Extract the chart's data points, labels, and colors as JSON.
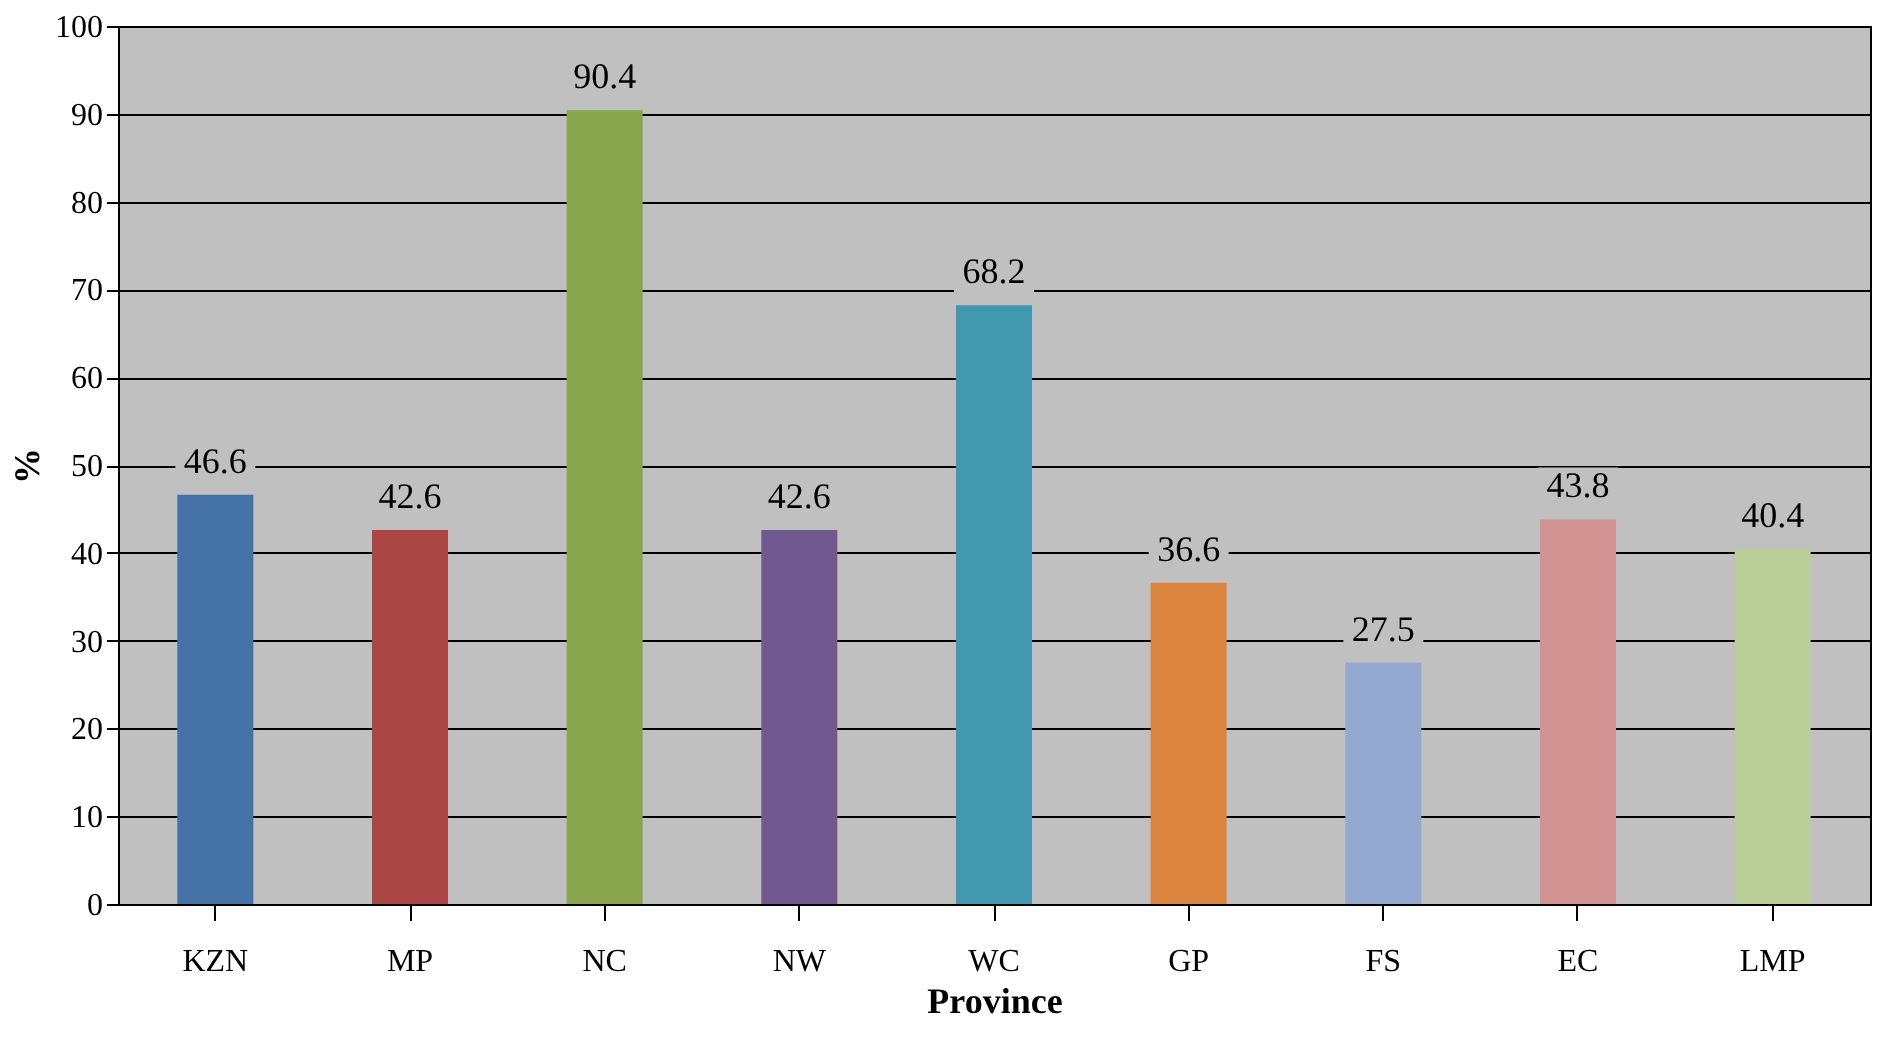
{
  "chart_data": {
    "type": "bar",
    "xlabel": "Province",
    "ylabel": "%",
    "categories": [
      "KZN",
      "MP",
      "NC",
      "NW",
      "WC",
      "GP",
      "FS",
      "EC",
      "LMP"
    ],
    "values": [
      46.6,
      42.6,
      90.4,
      42.6,
      68.2,
      36.6,
      27.5,
      43.8,
      40.4
    ],
    "colors": [
      "#4572a7",
      "#aa4643",
      "#89a54e",
      "#71588f",
      "#4198af",
      "#db843d",
      "#93a9cf",
      "#d19392",
      "#b9cd96"
    ],
    "ylim": [
      0,
      100
    ],
    "yticks": [
      0,
      10,
      20,
      30,
      40,
      50,
      60,
      70,
      80,
      90,
      100
    ],
    "grid": "y",
    "data_labels": true
  }
}
